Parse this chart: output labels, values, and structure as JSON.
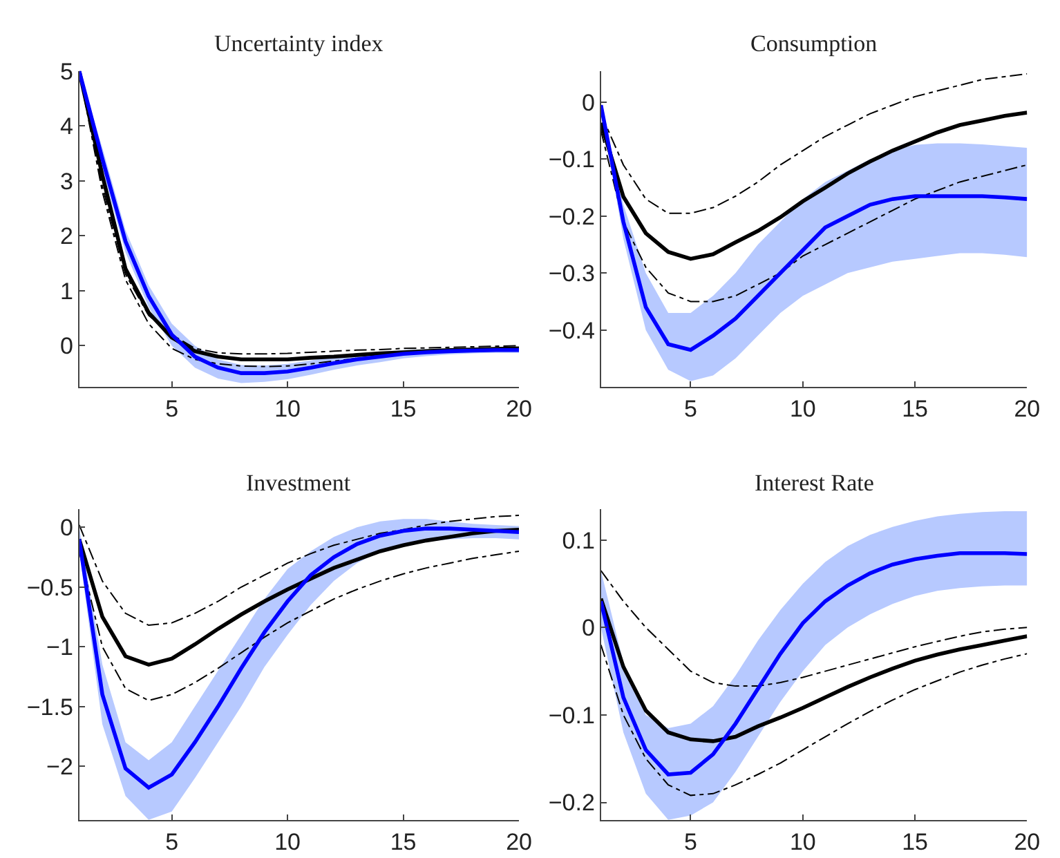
{
  "chart_data": [
    {
      "type": "line",
      "title": "Uncertainty index",
      "x": [
        1,
        2,
        3,
        4,
        5,
        6,
        7,
        8,
        9,
        10,
        11,
        12,
        13,
        14,
        15,
        16,
        17,
        18,
        19,
        20
      ],
      "xlim": [
        1,
        20
      ],
      "xticks": [
        5,
        10,
        15,
        20
      ],
      "ylim": [
        -0.75,
        5
      ],
      "yticks": [
        0,
        1,
        2,
        3,
        4,
        5
      ],
      "marker": "none",
      "series": [
        {
          "color": "#000000",
          "line_style": "dashed",
          "values": [
            5,
            2.9,
            1.3,
            0.55,
            0.2,
            -0.05,
            -0.13,
            -0.15,
            -0.15,
            -0.14,
            -0.12,
            -0.1,
            -0.08,
            -0.07,
            -0.05,
            -0.04,
            -0.03,
            -0.02,
            -0.01,
            0.0
          ]
        },
        {
          "color": "#000000",
          "line_style": "dashed",
          "values": [
            5,
            2.8,
            1.2,
            0.4,
            -0.05,
            -0.25,
            -0.33,
            -0.37,
            -0.38,
            -0.37,
            -0.33,
            -0.28,
            -0.23,
            -0.19,
            -0.16,
            -0.13,
            -0.11,
            -0.1,
            -0.09,
            -0.08
          ]
        },
        {
          "color": "#000000",
          "line_style": "solid",
          "values": [
            5,
            3.1,
            1.4,
            0.6,
            0.15,
            -0.1,
            -0.2,
            -0.25,
            -0.25,
            -0.25,
            -0.22,
            -0.2,
            -0.17,
            -0.14,
            -0.12,
            -0.1,
            -0.08,
            -0.07,
            -0.06,
            -0.05
          ]
        },
        {
          "color": "#0000ff",
          "line_style": "solid",
          "values": [
            5,
            3.4,
            1.9,
            0.9,
            0.2,
            -0.2,
            -0.4,
            -0.5,
            -0.5,
            -0.47,
            -0.4,
            -0.32,
            -0.25,
            -0.2,
            -0.15,
            -0.12,
            -0.1,
            -0.09,
            -0.08,
            -0.08
          ],
          "upper": [
            5,
            3.6,
            2.1,
            1.1,
            0.4,
            0.0,
            -0.25,
            -0.35,
            -0.36,
            -0.33,
            -0.27,
            -0.2,
            -0.15,
            -0.11,
            -0.08,
            -0.06,
            -0.05,
            -0.04,
            -0.03,
            -0.03
          ],
          "lower": [
            5,
            3.2,
            1.7,
            0.7,
            0.0,
            -0.4,
            -0.6,
            -0.68,
            -0.66,
            -0.61,
            -0.53,
            -0.44,
            -0.36,
            -0.3,
            -0.23,
            -0.19,
            -0.16,
            -0.14,
            -0.13,
            -0.13
          ]
        }
      ]
    },
    {
      "type": "line",
      "title": "Consumption",
      "x": [
        1,
        2,
        3,
        4,
        5,
        6,
        7,
        8,
        9,
        10,
        11,
        12,
        13,
        14,
        15,
        16,
        17,
        18,
        19,
        20
      ],
      "xlim": [
        1,
        20
      ],
      "xticks": [
        5,
        10,
        15,
        20
      ],
      "ylim": [
        -0.5,
        0.055
      ],
      "yticks": [
        {
          "value": -0.4,
          "label": "−0.4"
        },
        {
          "value": -0.3,
          "label": "−0.3"
        },
        {
          "value": -0.2,
          "label": "−0.2"
        },
        {
          "value": -0.1,
          "label": "−0.1"
        },
        0
      ],
      "marker": "none",
      "series": [
        {
          "color": "#000000",
          "line_style": "dashed",
          "values": [
            -0.02,
            -0.11,
            -0.17,
            -0.195,
            -0.195,
            -0.185,
            -0.165,
            -0.14,
            -0.11,
            -0.085,
            -0.06,
            -0.04,
            -0.02,
            -0.005,
            0.01,
            0.02,
            0.03,
            0.04,
            0.045,
            0.05
          ]
        },
        {
          "color": "#000000",
          "line_style": "dashed",
          "values": [
            -0.05,
            -0.21,
            -0.29,
            -0.335,
            -0.35,
            -0.35,
            -0.34,
            -0.32,
            -0.3,
            -0.27,
            -0.25,
            -0.23,
            -0.21,
            -0.19,
            -0.17,
            -0.155,
            -0.14,
            -0.13,
            -0.12,
            -0.11
          ]
        },
        {
          "color": "#000000",
          "line_style": "solid",
          "values": [
            -0.036,
            -0.166,
            -0.23,
            -0.263,
            -0.275,
            -0.267,
            -0.246,
            -0.226,
            -0.202,
            -0.174,
            -0.15,
            -0.125,
            -0.104,
            -0.085,
            -0.069,
            -0.053,
            -0.04,
            -0.032,
            -0.024,
            -0.018
          ]
        },
        {
          "color": "#0000ff",
          "line_style": "solid",
          "values": [
            -0.005,
            -0.21,
            -0.36,
            -0.425,
            -0.435,
            -0.41,
            -0.38,
            -0.34,
            -0.3,
            -0.26,
            -0.22,
            -0.2,
            -0.18,
            -0.17,
            -0.165,
            -0.165,
            -0.165,
            -0.165,
            -0.167,
            -0.17
          ],
          "upper": [
            0,
            -0.18,
            -0.3,
            -0.37,
            -0.37,
            -0.34,
            -0.3,
            -0.25,
            -0.21,
            -0.17,
            -0.14,
            -0.12,
            -0.1,
            -0.085,
            -0.075,
            -0.072,
            -0.072,
            -0.074,
            -0.077,
            -0.08
          ],
          "lower": [
            -0.01,
            -0.24,
            -0.4,
            -0.47,
            -0.49,
            -0.48,
            -0.45,
            -0.41,
            -0.37,
            -0.34,
            -0.32,
            -0.3,
            -0.29,
            -0.28,
            -0.275,
            -0.27,
            -0.265,
            -0.265,
            -0.268,
            -0.272
          ]
        }
      ]
    },
    {
      "type": "line",
      "title": "Investment",
      "x": [
        1,
        2,
        3,
        4,
        5,
        6,
        7,
        8,
        9,
        10,
        11,
        12,
        13,
        14,
        15,
        16,
        17,
        18,
        19,
        20
      ],
      "xlim": [
        1,
        20
      ],
      "xticks": [
        5,
        10,
        15,
        20
      ],
      "ylim": [
        -2.45,
        0.15
      ],
      "yticks": [
        {
          "value": -2,
          "label": "−2"
        },
        {
          "value": -1.5,
          "label": "−1.5"
        },
        {
          "value": -1,
          "label": "−1"
        },
        {
          "value": -0.5,
          "label": "−0.5"
        },
        0
      ],
      "marker": "none",
      "series": [
        {
          "color": "#000000",
          "line_style": "dashed",
          "values": [
            0.02,
            -0.45,
            -0.72,
            -0.82,
            -0.8,
            -0.72,
            -0.62,
            -0.5,
            -0.4,
            -0.3,
            -0.22,
            -0.15,
            -0.1,
            -0.05,
            -0.02,
            0.02,
            0.05,
            0.07,
            0.09,
            0.1
          ]
        },
        {
          "color": "#000000",
          "line_style": "dashed",
          "values": [
            -0.2,
            -1.0,
            -1.35,
            -1.45,
            -1.4,
            -1.3,
            -1.18,
            -1.05,
            -0.92,
            -0.8,
            -0.7,
            -0.6,
            -0.52,
            -0.45,
            -0.39,
            -0.34,
            -0.3,
            -0.26,
            -0.23,
            -0.2
          ]
        },
        {
          "color": "#000000",
          "line_style": "solid",
          "values": [
            -0.1,
            -0.75,
            -1.08,
            -1.15,
            -1.1,
            -0.98,
            -0.85,
            -0.73,
            -0.62,
            -0.52,
            -0.43,
            -0.34,
            -0.27,
            -0.2,
            -0.15,
            -0.11,
            -0.08,
            -0.05,
            -0.03,
            -0.02
          ]
        },
        {
          "color": "#0000ff",
          "line_style": "solid",
          "values": [
            -0.1,
            -1.4,
            -2.02,
            -2.18,
            -2.07,
            -1.8,
            -1.5,
            -1.18,
            -0.88,
            -0.62,
            -0.4,
            -0.25,
            -0.14,
            -0.07,
            -0.03,
            -0.01,
            -0.01,
            -0.02,
            -0.03,
            -0.04
          ],
          "upper": [
            0,
            -1.15,
            -1.8,
            -1.95,
            -1.8,
            -1.5,
            -1.2,
            -0.9,
            -0.6,
            -0.35,
            -0.2,
            -0.08,
            0.0,
            0.05,
            0.07,
            0.07,
            0.05,
            0.03,
            0.02,
            0.01
          ],
          "lower": [
            -0.2,
            -1.65,
            -2.25,
            -2.45,
            -2.38,
            -2.1,
            -1.8,
            -1.5,
            -1.17,
            -0.9,
            -0.65,
            -0.45,
            -0.3,
            -0.2,
            -0.15,
            -0.12,
            -0.1,
            -0.09,
            -0.09,
            -0.1
          ]
        }
      ]
    },
    {
      "type": "line",
      "title": "Interest Rate",
      "x": [
        1,
        2,
        3,
        4,
        5,
        6,
        7,
        8,
        9,
        10,
        11,
        12,
        13,
        14,
        15,
        16,
        17,
        18,
        19,
        20
      ],
      "xlim": [
        1,
        20
      ],
      "xticks": [
        5,
        10,
        15,
        20
      ],
      "ylim": [
        -0.22,
        0.135
      ],
      "yticks": [
        {
          "value": -0.2,
          "label": "−0.2"
        },
        {
          "value": -0.1,
          "label": "−0.1"
        },
        0,
        0.1
      ],
      "marker": "none",
      "series": [
        {
          "color": "#000000",
          "line_style": "dashed",
          "values": [
            0.065,
            0.03,
            0.0,
            -0.025,
            -0.05,
            -0.063,
            -0.067,
            -0.067,
            -0.063,
            -0.057,
            -0.05,
            -0.043,
            -0.036,
            -0.029,
            -0.022,
            -0.016,
            -0.01,
            -0.005,
            -0.002,
            0.0
          ]
        },
        {
          "color": "#000000",
          "line_style": "dashed",
          "values": [
            -0.02,
            -0.1,
            -0.15,
            -0.18,
            -0.192,
            -0.19,
            -0.18,
            -0.168,
            -0.155,
            -0.14,
            -0.125,
            -0.11,
            -0.096,
            -0.083,
            -0.071,
            -0.061,
            -0.051,
            -0.043,
            -0.036,
            -0.03
          ]
        },
        {
          "color": "#000000",
          "line_style": "solid",
          "values": [
            0.033,
            -0.045,
            -0.095,
            -0.12,
            -0.128,
            -0.13,
            -0.125,
            -0.113,
            -0.103,
            -0.092,
            -0.08,
            -0.068,
            -0.057,
            -0.047,
            -0.038,
            -0.031,
            -0.025,
            -0.02,
            -0.015,
            -0.01
          ]
        },
        {
          "color": "#0000ff",
          "line_style": "solid",
          "values": [
            0.03,
            -0.08,
            -0.14,
            -0.168,
            -0.166,
            -0.145,
            -0.11,
            -0.07,
            -0.03,
            0.005,
            0.03,
            0.048,
            0.062,
            0.072,
            0.078,
            0.082,
            0.085,
            0.085,
            0.085,
            0.084
          ],
          "upper": [
            0.065,
            -0.04,
            -0.1,
            -0.115,
            -0.11,
            -0.09,
            -0.055,
            -0.015,
            0.02,
            0.05,
            0.075,
            0.093,
            0.106,
            0.115,
            0.122,
            0.127,
            0.13,
            0.132,
            0.133,
            0.133
          ],
          "lower": [
            0.0,
            -0.12,
            -0.19,
            -0.22,
            -0.215,
            -0.2,
            -0.165,
            -0.125,
            -0.085,
            -0.05,
            -0.02,
            0.0,
            0.015,
            0.027,
            0.036,
            0.042,
            0.045,
            0.047,
            0.048,
            0.048
          ]
        }
      ]
    }
  ]
}
